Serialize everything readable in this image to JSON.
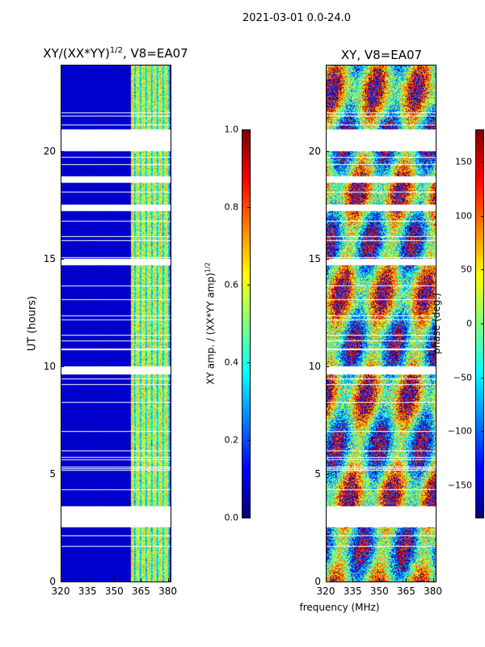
{
  "figure": {
    "suptitle": "2021-03-01 0.0-24.0",
    "shared_xlabel": "frequency (MHz)"
  },
  "chart_data": [
    {
      "type": "heatmap",
      "title": "XY/(XX*YY)",
      "title_exp": "1/2",
      "title_suffix": ", V8=EA07",
      "xlabel": "",
      "ylabel": "UT (hours)",
      "xlim": [
        320,
        382
      ],
      "ylim": [
        0,
        24
      ],
      "xticks": [
        "320",
        "335",
        "350",
        "365",
        "380"
      ],
      "yticks": [
        "0",
        "5",
        "10",
        "15",
        "20"
      ],
      "xtick_values": [
        320,
        335,
        350,
        365,
        380
      ],
      "ytick_values": [
        0,
        5,
        10,
        15,
        20
      ],
      "bright_band_mhz": [
        359,
        381
      ],
      "data_gap_hours": [
        [
          2.5,
          3.5
        ],
        [
          9.6,
          10.0
        ],
        [
          14.7,
          15.0
        ],
        [
          17.2,
          17.5
        ],
        [
          18.5,
          18.8
        ],
        [
          20.0,
          21.0
        ]
      ],
      "colorbar": {
        "label": "XY amp. / (XX*YY amp)",
        "label_exp": "1/2",
        "range": [
          0.0,
          1.0
        ],
        "ticks": [
          "0.0",
          "0.2",
          "0.4",
          "0.6",
          "0.8",
          "1.0"
        ],
        "tick_values": [
          0.0,
          0.2,
          0.4,
          0.6,
          0.8,
          1.0
        ],
        "colormap": "jet"
      }
    },
    {
      "type": "heatmap",
      "title": "XY, V8=EA07",
      "xlabel": "",
      "ylabel": "",
      "xlim": [
        320,
        382
      ],
      "ylim": [
        0,
        24
      ],
      "xticks": [
        "320",
        "335",
        "350",
        "365",
        "380"
      ],
      "yticks": [
        "0",
        "5",
        "10",
        "15",
        "20"
      ],
      "xtick_values": [
        320,
        335,
        350,
        365,
        380
      ],
      "ytick_values": [
        0,
        5,
        10,
        15,
        20
      ],
      "data_gap_hours": [
        [
          2.5,
          3.5
        ],
        [
          9.6,
          10.0
        ],
        [
          14.7,
          15.0
        ],
        [
          17.2,
          17.5
        ],
        [
          18.5,
          18.8
        ],
        [
          20.0,
          21.0
        ]
      ],
      "colorbar": {
        "label": "phase (deg.)",
        "range": [
          -180,
          180
        ],
        "ticks": [
          "150",
          "100",
          "50",
          "0",
          "−50",
          "−100",
          "−150"
        ],
        "tick_values": [
          150,
          100,
          50,
          0,
          -50,
          -100,
          -150
        ],
        "colormap": "jet"
      }
    }
  ]
}
